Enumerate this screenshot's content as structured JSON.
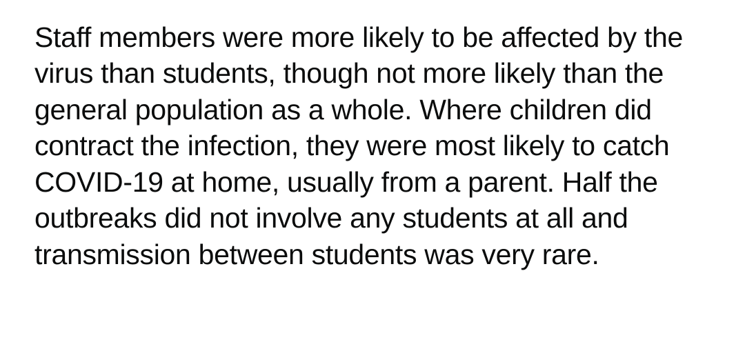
{
  "document": {
    "paragraph": "Staff members were more likely to be affected by the virus than students, though not more likely than the general population as a whole. Where children did contract the infection, they were most likely to catch COVID-19 at home, usually from a parent. Half the outbreaks did not involve any students at all and transmission between students was very rare.",
    "text_color": "#0b0c0c",
    "background_color": "#ffffff",
    "font_size": 41,
    "line_height": 1.28
  }
}
